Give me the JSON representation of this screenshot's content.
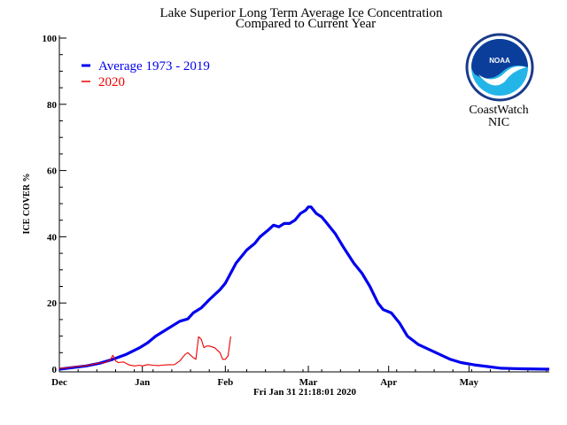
{
  "chart_data": {
    "type": "line",
    "title": "Lake Superior Long Term Average Ice Concentration",
    "subtitle": "Compared to Current Year",
    "xlabel": "",
    "ylabel": "ICE COVER %",
    "ylim": [
      0,
      100
    ],
    "xlim_days": [
      0,
      183
    ],
    "y_ticks": [
      0,
      20,
      40,
      60,
      80,
      100
    ],
    "x_ticks": [
      {
        "label": "Dec",
        "day": 0
      },
      {
        "label": "Jan",
        "day": 31
      },
      {
        "label": "Feb",
        "day": 62
      },
      {
        "label": "Mar",
        "day": 93
      },
      {
        "label": "Apr",
        "day": 123
      },
      {
        "label": "May",
        "day": 153
      }
    ],
    "timestamp": "Fri Jan 31 21:18:01 2020",
    "legend": [
      {
        "label": "Average 1973 - 2019",
        "color": "#0000ee"
      },
      {
        "label": "2020",
        "color": "#ee0000"
      }
    ],
    "series": [
      {
        "name": "Average 1973 - 2019",
        "color": "#0000ee",
        "x": [
          0,
          5,
          10,
          15,
          20,
          25,
          30,
          33,
          36,
          40,
          45,
          48,
          50,
          53,
          56,
          60,
          62,
          64,
          66,
          68,
          70,
          73,
          75,
          78,
          80,
          82,
          84,
          86,
          88,
          90,
          92,
          93,
          94,
          95,
          96,
          98,
          100,
          103,
          106,
          110,
          113,
          116,
          119,
          121,
          124,
          127,
          130,
          134,
          138,
          142,
          146,
          150,
          155,
          160,
          165,
          170,
          175,
          183
        ],
        "y": [
          0,
          0.5,
          1,
          1.8,
          3,
          4.5,
          6.5,
          8,
          10,
          12,
          14.5,
          15.2,
          17,
          18.5,
          21,
          24,
          26,
          29,
          32,
          34,
          36,
          38,
          40,
          42,
          43.5,
          43,
          44,
          44,
          45,
          47,
          48,
          49,
          49,
          48,
          47,
          46,
          44,
          41,
          37,
          32,
          29,
          25,
          20,
          18,
          17,
          14,
          10,
          7.5,
          6,
          4.5,
          3,
          2,
          1.3,
          0.8,
          0.3,
          0.2,
          0.1,
          0
        ]
      },
      {
        "name": "2020",
        "color": "#ee0000",
        "x": [
          0,
          3,
          6,
          9,
          12,
          14,
          17,
          19,
          20,
          21,
          22,
          24,
          26,
          28,
          30,
          31,
          33,
          35,
          37,
          38,
          40,
          43,
          45,
          47,
          48,
          50,
          51,
          52,
          53,
          54,
          55,
          56,
          58,
          60,
          61,
          62,
          63,
          64
        ],
        "y": [
          0.3,
          0.4,
          0.8,
          1,
          1.4,
          1.8,
          2,
          2.8,
          4.2,
          2.5,
          2,
          2.2,
          1.3,
          1,
          1.2,
          1,
          1.4,
          1.2,
          1.1,
          1.2,
          1.3,
          1.4,
          2.5,
          4.5,
          5,
          3.5,
          3,
          9.8,
          9,
          6.5,
          7,
          7,
          6.5,
          5,
          3,
          3,
          4,
          9.9
        ]
      }
    ],
    "logo": {
      "text": "NOAA",
      "caption_line1": "CoastWatch",
      "caption_line2": "NIC"
    }
  }
}
